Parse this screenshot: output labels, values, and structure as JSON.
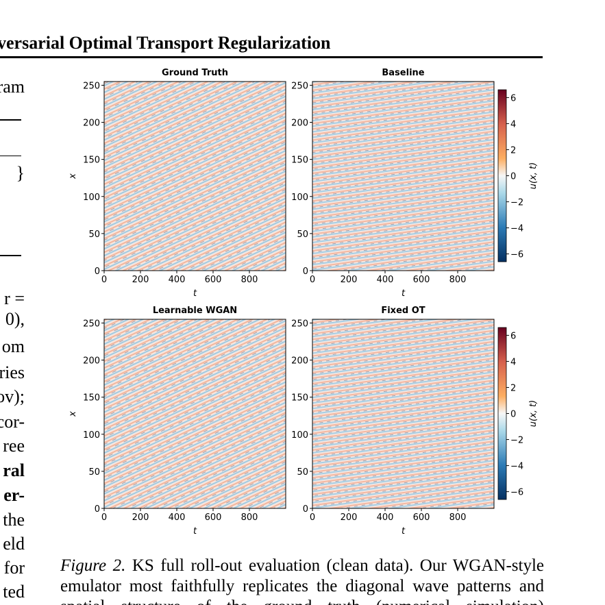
{
  "header": {
    "title": "versarial Optimal Transport Regularization"
  },
  "left_column": [
    "ram",
    "}",
    "r =",
    "0),",
    "om",
    "ries",
    "ov);",
    "cor-",
    "ree",
    "ral",
    "er-",
    "the",
    "eld",
    "for",
    "ted"
  ],
  "figure": {
    "panels": [
      {
        "title": "Ground Truth",
        "xlabel": "t",
        "ylabel": "x"
      },
      {
        "title": "Baseline",
        "xlabel": "t"
      },
      {
        "title": "Learnable WGAN",
        "xlabel": "t",
        "ylabel": "x"
      },
      {
        "title": "Fixed OT",
        "xlabel": "t"
      }
    ],
    "xlim": [
      0,
      1000
    ],
    "xticks": [
      0,
      200,
      400,
      600,
      800
    ],
    "ylim": [
      0,
      255
    ],
    "yticks": [
      0,
      50,
      100,
      150,
      200,
      250
    ],
    "colorbar": {
      "label": "u(x, t)",
      "lim": [
        -6.6,
        6.6
      ],
      "ticks": [
        {
          "value": -6,
          "label": "−6"
        },
        {
          "value": -4,
          "label": "−4"
        },
        {
          "value": -2,
          "label": "−2"
        },
        0,
        2,
        4,
        6
      ]
    }
  },
  "caption": {
    "label": "Figure 2.",
    "text": "KS full roll-out evaluation (clean data). Our WGAN-style emulator most faithfully replicates the diagonal wave patterns and spatial structure of the ground truth (numerical simulation)"
  }
}
